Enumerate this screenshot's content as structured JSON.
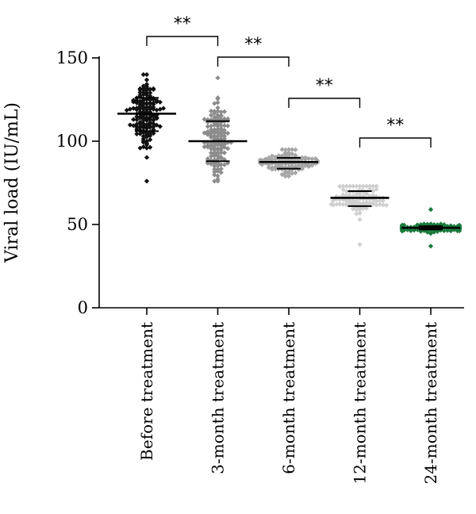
{
  "chart_data": {
    "type": "scatter",
    "ylabel": "Viral load (IU/mL)",
    "ylim": [
      0,
      150
    ],
    "yticks": [
      "0",
      "50",
      "100",
      "150"
    ],
    "categories": [
      "Before treatment",
      "3-month treatment",
      "6-month treatment",
      "12-month treatment",
      "24-month treatment"
    ],
    "series": [
      {
        "color": "#111111",
        "mean": 116.5,
        "sd_low": 106,
        "sd_high": 126,
        "min": 76,
        "max": 140,
        "n": 150
      },
      {
        "color": "#8c8c8c",
        "mean": 100,
        "sd_low": 88,
        "sd_high": 112,
        "min": 76,
        "max": 138,
        "n": 140
      },
      {
        "color": "#a6a6a6",
        "mean": 87.5,
        "sd_low": 83.5,
        "sd_high": 90,
        "min": 79,
        "max": 95,
        "n": 120
      },
      {
        "color": "#cfcfcf",
        "mean": 66,
        "sd_low": 61,
        "sd_high": 70,
        "min": 38,
        "max": 73,
        "n": 110
      },
      {
        "color": "#1a7a3c",
        "mean": 48,
        "sd_low": 47,
        "sd_high": 49,
        "min": 37,
        "max": 59,
        "n": 170
      }
    ],
    "comparisons": [
      {
        "from": 0,
        "to": 1,
        "label": "**"
      },
      {
        "from": 1,
        "to": 2,
        "label": "**"
      },
      {
        "from": 2,
        "to": 3,
        "label": "**"
      },
      {
        "from": 3,
        "to": 4,
        "label": "**"
      }
    ]
  }
}
